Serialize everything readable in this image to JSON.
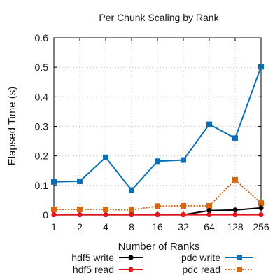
{
  "chart_data": {
    "type": "line",
    "title": "Per Chunk Scaling by Rank",
    "xlabel": "Number of Ranks",
    "ylabel": "Elapsed Time (s)",
    "categories": [
      "1",
      "2",
      "4",
      "8",
      "16",
      "32",
      "64",
      "128",
      "256"
    ],
    "ylim": [
      0,
      0.6
    ],
    "yticks": [
      "0",
      "0.1",
      "0.2",
      "0.3",
      "0.4",
      "0.5",
      "0.6"
    ],
    "grid": true,
    "legend_position": "bottom",
    "series": [
      {
        "name": "hdf5 write",
        "color": "#000000",
        "marker": "circle",
        "dash": false,
        "values": [
          0.001,
          0.001,
          0.001,
          0.001,
          0.001,
          0.001,
          0.015,
          0.017,
          0.024
        ]
      },
      {
        "name": "hdf5 read",
        "color": "#e8141c",
        "marker": "circle",
        "dash": false,
        "values": [
          0.001,
          0.001,
          0.001,
          0.001,
          0.001,
          0.001,
          0.001,
          0.001,
          0.001
        ]
      },
      {
        "name": "pdc write",
        "color": "#0a6fb5",
        "marker": "square",
        "dash": false,
        "values": [
          0.112,
          0.114,
          0.195,
          0.084,
          0.182,
          0.186,
          0.307,
          0.26,
          0.502
        ]
      },
      {
        "name": "pdc read",
        "color": "#d9650d",
        "marker": "square",
        "dash": true,
        "values": [
          0.019,
          0.019,
          0.019,
          0.017,
          0.03,
          0.031,
          0.031,
          0.119,
          0.04
        ]
      }
    ]
  }
}
